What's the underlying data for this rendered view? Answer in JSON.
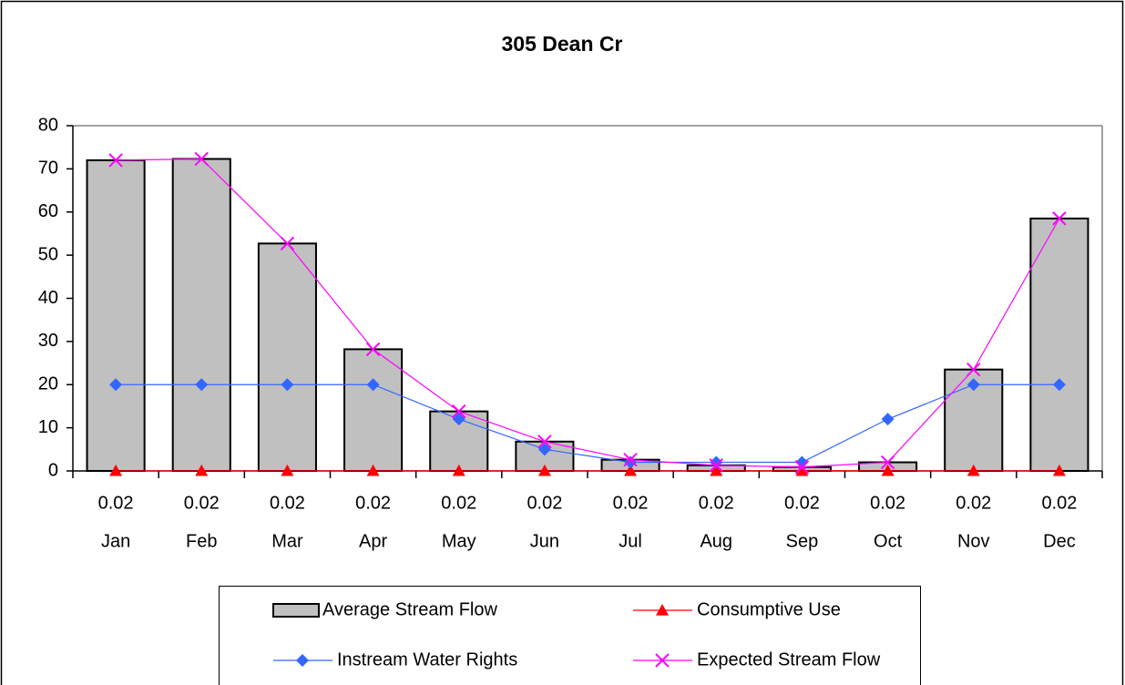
{
  "chart_data": {
    "type": "bar",
    "title": "305 Dean Cr",
    "categories": [
      "Jan",
      "Feb",
      "Mar",
      "Apr",
      "May",
      "Jun",
      "Jul",
      "Aug",
      "Sep",
      "Oct",
      "Nov",
      "Dec"
    ],
    "series": [
      {
        "name": "Average Stream Flow",
        "type": "bar",
        "color": "#c0c0c0",
        "values": [
          72,
          72.3,
          52.7,
          28.2,
          13.8,
          6.8,
          2.6,
          1.3,
          0.9,
          2.0,
          23.5,
          58.5
        ]
      },
      {
        "name": "Consumptive Use",
        "type": "line",
        "marker": "triangle",
        "color": "#ff0000",
        "values": [
          0.02,
          0.02,
          0.02,
          0.02,
          0.02,
          0.02,
          0.02,
          0.02,
          0.02,
          0.02,
          0.02,
          0.02
        ]
      },
      {
        "name": "Instream Water Rights",
        "type": "line",
        "marker": "diamond",
        "color": "#3366ff",
        "values": [
          20,
          20,
          20,
          20,
          12,
          5,
          2,
          2,
          2,
          12,
          20,
          20
        ]
      },
      {
        "name": "Expected Stream Flow",
        "type": "line",
        "marker": "x",
        "color": "#ff00ff",
        "values": [
          72,
          72.3,
          52.7,
          28.2,
          13.8,
          6.8,
          2.6,
          1.3,
          0.9,
          2.0,
          23.5,
          58.5
        ]
      }
    ],
    "ylim": [
      0,
      80
    ],
    "yticks": [
      0,
      10,
      20,
      30,
      40,
      50,
      60,
      70,
      80
    ],
    "grid": false,
    "legend": "bottom"
  }
}
